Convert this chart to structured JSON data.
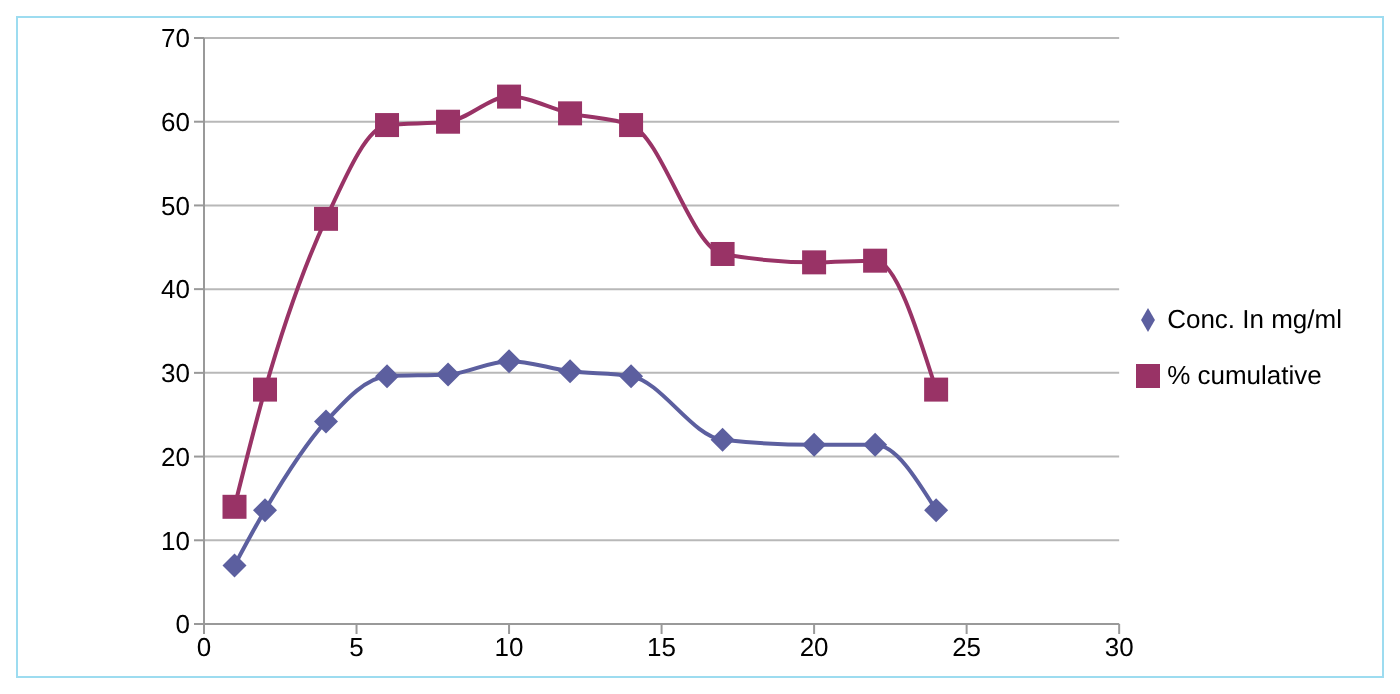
{
  "chart_data": {
    "type": "line",
    "x": [
      1,
      2,
      4,
      6,
      8,
      10,
      12,
      14,
      17,
      20,
      22,
      24
    ],
    "series": [
      {
        "name": "Conc. In mg/ml",
        "color": "#5c5f9f",
        "marker": "diamond",
        "values": [
          7,
          13.6,
          24.2,
          29.6,
          29.8,
          31.4,
          30.2,
          29.6,
          22,
          21.4,
          21.4,
          13.6
        ]
      },
      {
        "name": "% cumulative",
        "color": "#993366",
        "marker": "square",
        "values": [
          14,
          28,
          48.4,
          59.6,
          60,
          63,
          61,
          59.6,
          44.2,
          43.2,
          43.4,
          28
        ]
      }
    ],
    "xlim": [
      0,
      30
    ],
    "xticks": [
      0,
      5,
      10,
      15,
      20,
      25,
      30
    ],
    "ylim": [
      0,
      70
    ],
    "yticks": [
      0,
      10,
      20,
      30,
      40,
      50,
      60,
      70
    ],
    "grid": "y",
    "legend": "right",
    "line_style": "solid"
  }
}
